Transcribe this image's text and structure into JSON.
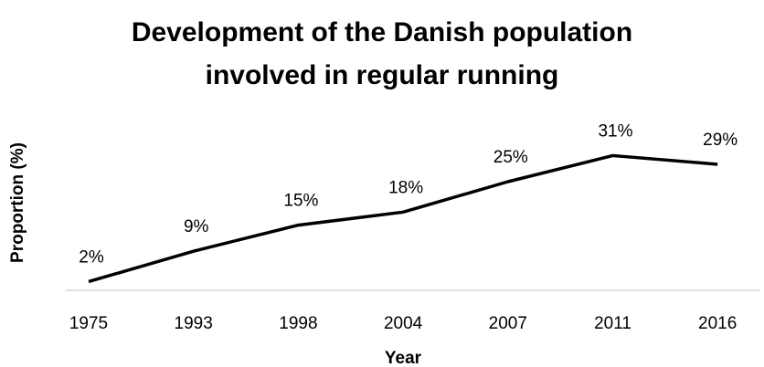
{
  "chart_data": {
    "type": "line",
    "title": "Development of the Danish population involved in regular running",
    "x_label": "Year",
    "y_label": "Proportion (%)",
    "categories": [
      "1975",
      "1993",
      "1998",
      "2004",
      "2007",
      "2011",
      "2016"
    ],
    "values": [
      2,
      9,
      15,
      18,
      25,
      31,
      29
    ],
    "value_labels": [
      "2%",
      "9%",
      "15%",
      "18%",
      "25%",
      "31%",
      "29%"
    ],
    "color": "#000000"
  }
}
